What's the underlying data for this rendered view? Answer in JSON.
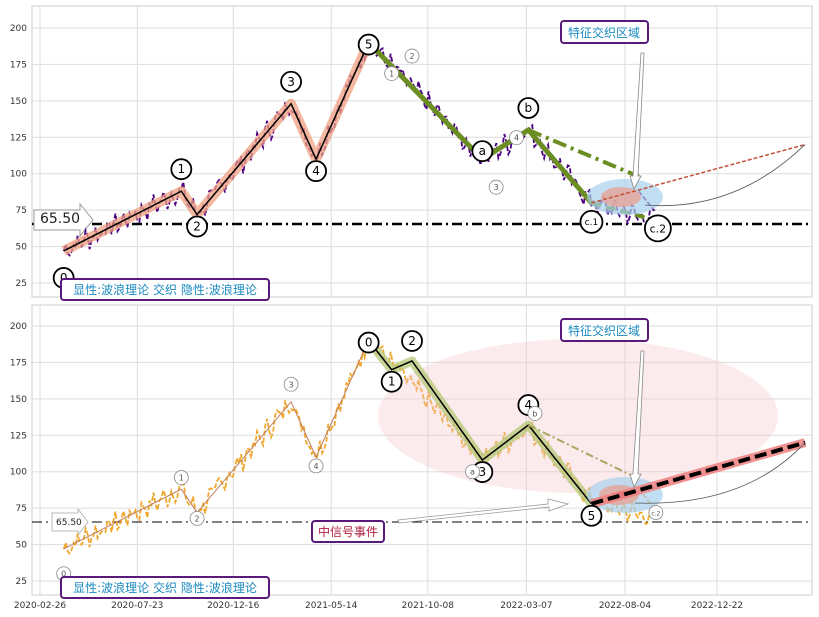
{
  "chart_data": [
    {
      "type": "line",
      "panel": "top",
      "ylim": [
        15,
        215
      ],
      "yticks": [
        25,
        50,
        75,
        100,
        125,
        150,
        175,
        200
      ],
      "xlim": [
        "2020-02-26",
        "2023-05-29"
      ],
      "grid": true,
      "price_color": "#4b0082",
      "baseline": {
        "value": 65.5,
        "label": "65.50"
      },
      "legend_box": "显性:波浪理论 交织 隐性:波浪理论",
      "zone_label": "特征交织区域",
      "impulse_wave": [
        {
          "date": "2020-04-02",
          "value": 47,
          "label": "0"
        },
        {
          "date": "2020-09-28",
          "value": 88,
          "label": "1"
        },
        {
          "date": "2020-10-22",
          "value": 72,
          "label": "2"
        },
        {
          "date": "2021-03-14",
          "value": 148,
          "label": "3"
        },
        {
          "date": "2021-04-21",
          "value": 110,
          "label": "4"
        },
        {
          "date": "2021-07-10",
          "value": 190,
          "label": "5"
        }
      ],
      "correction_wave": [
        {
          "date": "2021-07-10",
          "value": 190,
          "label": "B"
        },
        {
          "date": "2021-12-30",
          "value": 110,
          "label": "a"
        },
        {
          "date": "2022-03-10",
          "value": 130,
          "label": "b"
        },
        {
          "date": "2022-06-14",
          "value": 80,
          "label": "c.1"
        },
        {
          "date": "2022-09-20",
          "value": 68,
          "label": "c.2"
        }
      ],
      "minor_labels": [
        "1",
        "2",
        "3",
        "4"
      ],
      "projection_end": {
        "date": "2023-05-05",
        "value": 120
      }
    },
    {
      "type": "line",
      "panel": "bottom",
      "ylim": [
        15,
        215
      ],
      "yticks": [
        25,
        50,
        75,
        100,
        125,
        150,
        175,
        200
      ],
      "xlim": [
        "2020-02-26",
        "2023-05-29"
      ],
      "grid": true,
      "price_color": "#f0a830",
      "baseline": {
        "value": 65.5,
        "label": "65.50"
      },
      "legend_box": "显性:波浪理论 交织 隐性:波浪理论",
      "zone_label": "特征交织区域",
      "event_label": "中信号事件",
      "impulse_wave": [
        {
          "date": "2021-07-10",
          "value": 190,
          "label": "0"
        },
        {
          "date": "2021-08-14",
          "value": 170,
          "label": "1"
        },
        {
          "date": "2021-09-14",
          "value": 176,
          "label": "2"
        },
        {
          "date": "2021-12-30",
          "value": 108,
          "label": "3"
        },
        {
          "date": "2022-03-10",
          "value": 132,
          "label": "4"
        },
        {
          "date": "2022-06-14",
          "value": 78,
          "label": "5"
        }
      ],
      "minor_labels": [
        "0",
        "1",
        "2",
        "3",
        "4",
        "a",
        "b",
        "c.2"
      ],
      "projection_end": {
        "date": "2023-05-05",
        "value": 120
      },
      "xtick_labels": [
        "2020-02-26",
        "2020-07-23",
        "2020-12-16",
        "2021-05-14",
        "2021-10-08",
        "2022-03-07",
        "2022-08-04",
        "2022-12-22"
      ]
    }
  ]
}
